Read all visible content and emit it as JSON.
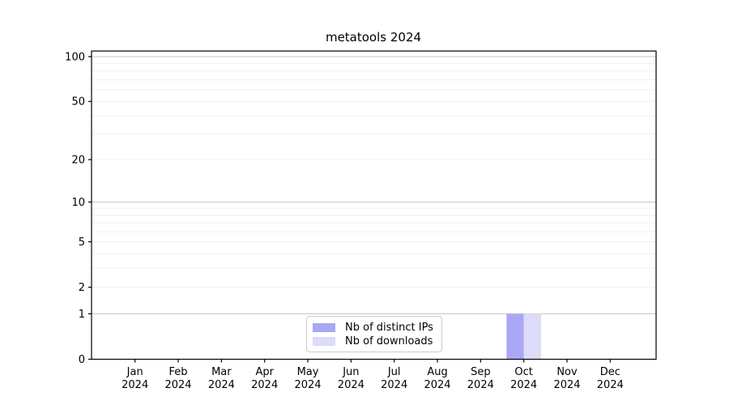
{
  "chart_data": {
    "type": "bar",
    "title": "metatools 2024",
    "categories": [
      "Jan 2024",
      "Feb 2024",
      "Mar 2024",
      "Apr 2024",
      "May 2024",
      "Jun 2024",
      "Jul 2024",
      "Aug 2024",
      "Sep 2024",
      "Oct 2024",
      "Nov 2024",
      "Dec 2024"
    ],
    "series": [
      {
        "name": "Nb of distinct IPs",
        "color": "#a8a8f5",
        "values": [
          0,
          0,
          0,
          0,
          0,
          0,
          0,
          0,
          0,
          1,
          0,
          0
        ]
      },
      {
        "name": "Nb of downloads",
        "color": "#dcdcf8",
        "values": [
          0,
          0,
          0,
          0,
          0,
          0,
          0,
          0,
          0,
          1,
          0,
          0
        ]
      }
    ],
    "xlabel": "",
    "ylabel": "",
    "y_axis": {
      "scale": "symlog-like (position proportional to log(1+v))",
      "tick_labels": [
        0,
        1,
        2,
        5,
        10,
        20,
        50,
        100
      ],
      "major_gridlines": [
        1,
        10,
        100
      ],
      "minor_gridlines": [
        2,
        3,
        4,
        5,
        6,
        7,
        8,
        9,
        20,
        30,
        40,
        50,
        60,
        70,
        80,
        90
      ],
      "ylim": [
        0,
        109
      ]
    },
    "legend_position": "inside-bottom-center",
    "grid": true,
    "colors": {
      "major_grid": "#cccccc",
      "minor_grid": "#efefef",
      "axis": "#000000",
      "tick_text": "#000000",
      "background": "#ffffff"
    }
  }
}
